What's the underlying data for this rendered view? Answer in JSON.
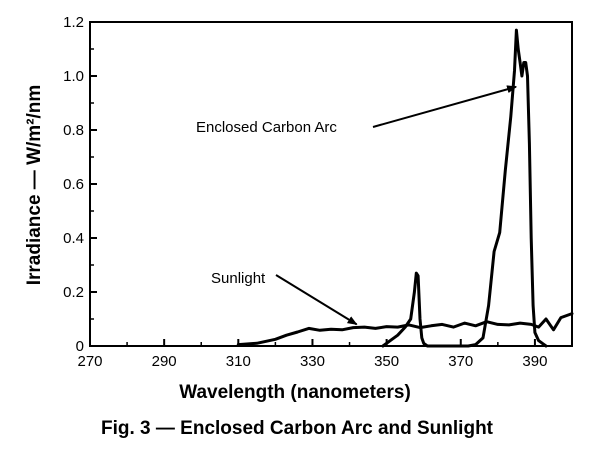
{
  "chart_data": {
    "type": "line",
    "xlabel": "Wavelength (nanometers)",
    "ylabel": "Irradiance — W/m²/nm",
    "xlim": [
      270,
      400
    ],
    "ylim": [
      0,
      1.2
    ],
    "x_ticks": [
      270,
      290,
      310,
      330,
      350,
      370,
      390
    ],
    "x_tick_labels": [
      "270",
      "290",
      "310",
      "330",
      "350",
      "370",
      "390"
    ],
    "y_ticks": [
      0,
      0.2,
      0.4,
      0.6,
      0.8,
      1.0,
      1.2
    ],
    "y_tick_labels": [
      "0",
      "0.2",
      "0.4",
      "0.6",
      "0.8",
      "1.0",
      "1.2"
    ],
    "grid": false,
    "series": [
      {
        "name": "Sunlight",
        "x": [
          310,
          315,
          320,
          323,
          326,
          329,
          332,
          335,
          338,
          341,
          344,
          347,
          350,
          353,
          356,
          359,
          362,
          365,
          368,
          371,
          374,
          377,
          380,
          383,
          386,
          389,
          391,
          393,
          395,
          397,
          400
        ],
        "y": [
          0.005,
          0.01,
          0.025,
          0.04,
          0.052,
          0.065,
          0.058,
          0.062,
          0.06,
          0.068,
          0.07,
          0.065,
          0.072,
          0.07,
          0.078,
          0.068,
          0.075,
          0.08,
          0.07,
          0.085,
          0.075,
          0.09,
          0.08,
          0.078,
          0.085,
          0.08,
          0.07,
          0.1,
          0.06,
          0.105,
          0.12
        ]
      },
      {
        "name": "Enclosed Carbon Arc",
        "x": [
          349,
          351,
          353,
          355,
          356.5,
          357.5,
          358,
          358.5,
          359,
          359.5,
          360,
          361,
          362,
          364,
          366,
          368,
          370,
          372,
          374,
          376,
          377.5,
          379,
          380.5,
          382,
          383.5,
          384.5,
          385,
          385.5,
          386,
          386.5,
          387,
          387.5,
          388,
          388.5,
          389,
          389.5,
          390,
          391,
          392,
          393
        ],
        "y": [
          0,
          0.02,
          0.04,
          0.07,
          0.1,
          0.2,
          0.27,
          0.26,
          0.1,
          0.03,
          0.01,
          0,
          0,
          0,
          0,
          0,
          0,
          0,
          0.005,
          0.03,
          0.15,
          0.35,
          0.42,
          0.65,
          0.85,
          1.02,
          1.17,
          1.1,
          1.05,
          1.0,
          1.05,
          1.05,
          1.0,
          0.75,
          0.4,
          0.15,
          0.05,
          0.02,
          0.01,
          0
        ]
      }
    ],
    "annotations": [
      {
        "text": "Enclosed Carbon Arc",
        "target_x": 386,
        "target_y": 0.96
      },
      {
        "text": "Sunlight",
        "target_x": 343,
        "target_y": 0.08
      }
    ]
  },
  "caption": "Fig. 3 — Enclosed Carbon Arc and Sunlight"
}
